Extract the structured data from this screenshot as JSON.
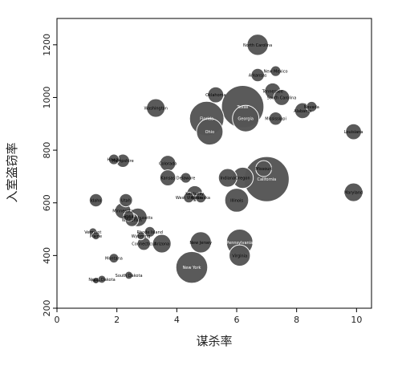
{
  "chart_data": {
    "type": "scatter",
    "title": "",
    "xlabel": "谋杀率",
    "ylabel": "入室盗窃率",
    "xlim": [
      0,
      10.5
    ],
    "ylim": [
      200,
      1300
    ],
    "x_ticks": [
      0,
      2,
      4,
      6,
      8,
      10
    ],
    "y_ticks": [
      200,
      400,
      600,
      800,
      1000,
      1200
    ],
    "grid": false,
    "legend": "none",
    "bubble_color": "#555555",
    "points": [
      {
        "label": "North Carolina",
        "x": 6.7,
        "y": 1200,
        "size": 4
      },
      {
        "label": "New Mexico",
        "x": 7.3,
        "y": 1100,
        "size": 2
      },
      {
        "label": "Arkansas",
        "x": 6.7,
        "y": 1085,
        "size": 2.5
      },
      {
        "label": "Tennessee",
        "x": 7.2,
        "y": 1025,
        "size": 3
      },
      {
        "label": "South Carolina",
        "x": 7.5,
        "y": 1000,
        "size": 3
      },
      {
        "label": "Oklahoma",
        "x": 5.3,
        "y": 1010,
        "size": 3
      },
      {
        "label": "Texas",
        "x": 6.2,
        "y": 965,
        "size": 8
      },
      {
        "label": "Washington",
        "x": 3.3,
        "y": 960,
        "size": 3.5
      },
      {
        "label": "Nevada",
        "x": 8.5,
        "y": 965,
        "size": 2
      },
      {
        "label": "Alabama",
        "x": 8.2,
        "y": 950,
        "size": 3
      },
      {
        "label": "Mississippi",
        "x": 7.3,
        "y": 920,
        "size": 2.5
      },
      {
        "label": "Georgia",
        "x": 6.3,
        "y": 920,
        "size": 5
      },
      {
        "label": "Florida",
        "x": 5.0,
        "y": 920,
        "size": 6.5
      },
      {
        "label": "Ohio",
        "x": 5.1,
        "y": 870,
        "size": 5
      },
      {
        "label": "Louisiana",
        "x": 9.9,
        "y": 870,
        "size": 3
      },
      {
        "label": "Hawaii",
        "x": 1.9,
        "y": 765,
        "size": 2
      },
      {
        "label": "Hampshire",
        "x": 2.2,
        "y": 760,
        "size": 2.5
      },
      {
        "label": "Colorado",
        "x": 3.7,
        "y": 750,
        "size": 3
      },
      {
        "label": "Missouri",
        "x": 6.9,
        "y": 730,
        "size": 3
      },
      {
        "label": "Kansas",
        "x": 3.7,
        "y": 695,
        "size": 3
      },
      {
        "label": "Delaware",
        "x": 4.3,
        "y": 695,
        "size": 2
      },
      {
        "label": "Indiana",
        "x": 5.7,
        "y": 695,
        "size": 3.5
      },
      {
        "label": "Oregon",
        "x": 6.2,
        "y": 695,
        "size": 4
      },
      {
        "label": "California",
        "x": 7.0,
        "y": 690,
        "size": 8.5
      },
      {
        "label": "Maryland",
        "x": 9.9,
        "y": 640,
        "size": 3.5
      },
      {
        "label": "Kentucky",
        "x": 4.6,
        "y": 635,
        "size": 3
      },
      {
        "label": "West Virginia",
        "x": 4.4,
        "y": 620,
        "size": 2
      },
      {
        "label": "Nebraska",
        "x": 4.8,
        "y": 620,
        "size": 2
      },
      {
        "label": "Illinois",
        "x": 6.0,
        "y": 610,
        "size": 4.5
      },
      {
        "label": "Idaho",
        "x": 1.3,
        "y": 610,
        "size": 2.5
      },
      {
        "label": "Utah",
        "x": 2.3,
        "y": 610,
        "size": 2.5
      },
      {
        "label": "Minnesota",
        "x": 2.2,
        "y": 570,
        "size": 3
      },
      {
        "label": "Iowa",
        "x": 2.4,
        "y": 550,
        "size": 2
      },
      {
        "label": "Wisconsin",
        "x": 2.5,
        "y": 535,
        "size": 2.5
      },
      {
        "label": "Massachusetts",
        "x": 2.7,
        "y": 545,
        "size": 3.5
      },
      {
        "label": "Vermont",
        "x": 1.2,
        "y": 490,
        "size": 1.5
      },
      {
        "label": "Maine",
        "x": 1.3,
        "y": 475,
        "size": 1.5
      },
      {
        "label": "Rhode Island",
        "x": 3.1,
        "y": 490,
        "size": 2
      },
      {
        "label": "Wyoming",
        "x": 2.8,
        "y": 475,
        "size": 1.5
      },
      {
        "label": "New Jersey",
        "x": 4.8,
        "y": 450,
        "size": 4
      },
      {
        "label": "Pennsylvania",
        "x": 6.1,
        "y": 450,
        "size": 5
      },
      {
        "label": "Connecticut",
        "x": 2.9,
        "y": 445,
        "size": 2.5
      },
      {
        "label": "Arizona",
        "x": 3.5,
        "y": 445,
        "size": 3.5
      },
      {
        "label": "Virginia",
        "x": 6.1,
        "y": 400,
        "size": 4
      },
      {
        "label": "Montana",
        "x": 1.9,
        "y": 390,
        "size": 1.8
      },
      {
        "label": "New York",
        "x": 4.5,
        "y": 355,
        "size": 6
      },
      {
        "label": "South Dakota",
        "x": 2.4,
        "y": 325,
        "size": 1.5
      },
      {
        "label": "North Dakota",
        "x": 1.5,
        "y": 310,
        "size": 1.5
      },
      {
        "label": "New",
        "x": 1.3,
        "y": 305,
        "size": 1.2
      }
    ]
  }
}
